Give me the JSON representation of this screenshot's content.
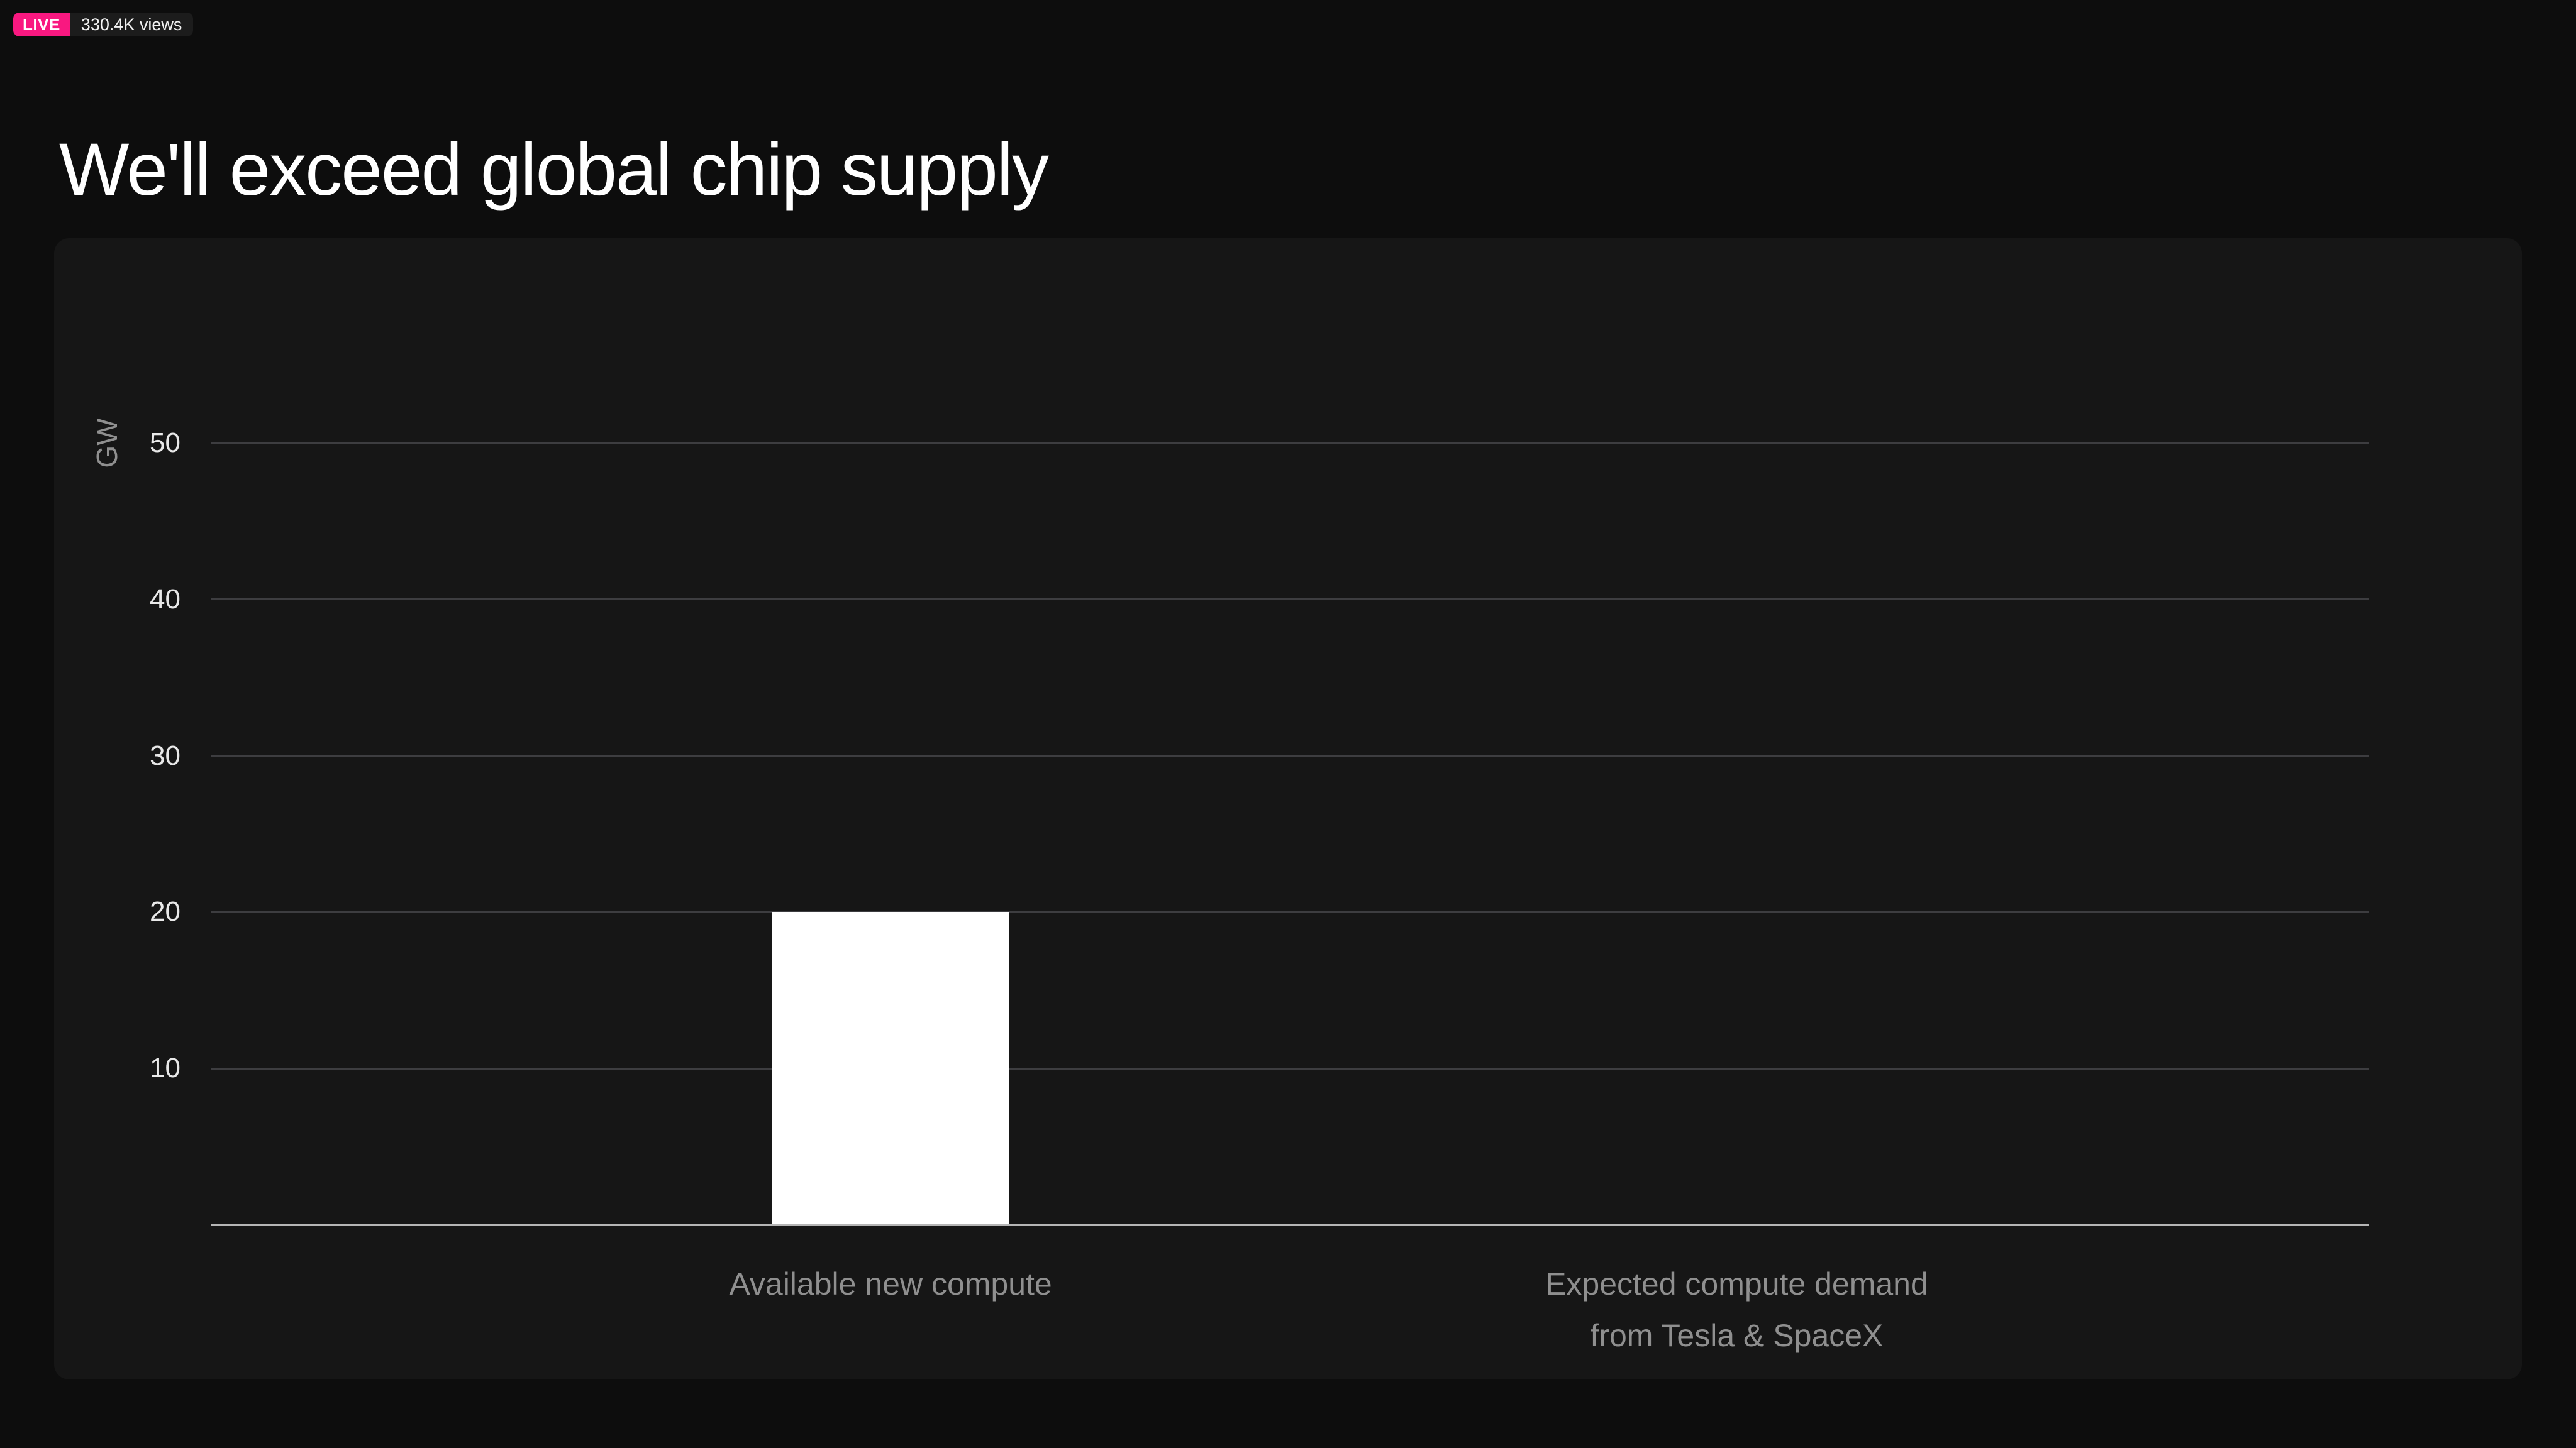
{
  "overlay": {
    "live_label": "LIVE",
    "views_text": "330.4K views"
  },
  "slide": {
    "title": "We'll exceed global chip supply"
  },
  "chart_data": {
    "type": "bar",
    "title": "We'll exceed global chip supply",
    "xlabel": "",
    "ylabel": "GW",
    "categories": [
      "Available new compute",
      "Expected compute demand\nfrom Tesla & SpaceX"
    ],
    "category_lines": [
      [
        "Available new compute"
      ],
      [
        "Expected compute demand",
        "from Tesla & SpaceX"
      ]
    ],
    "series": [
      {
        "name": "GW",
        "values": [
          20,
          null
        ]
      }
    ],
    "values": [
      20,
      null
    ],
    "yticks": [
      10,
      20,
      30,
      40,
      50
    ],
    "ylim": [
      0,
      63
    ],
    "grid": true,
    "legend": false,
    "bar_color": "#ffffff"
  },
  "colors": {
    "background": "#0d0d0d",
    "panel": "#161616",
    "accent_pink": "#f91880",
    "gridline": "#3d3d40",
    "axis_line": "#b5b5b5",
    "tick_text": "#e9e9e9",
    "muted_text": "#8f8f8f",
    "title_text": "#ffffff",
    "bar": "#ffffff"
  }
}
